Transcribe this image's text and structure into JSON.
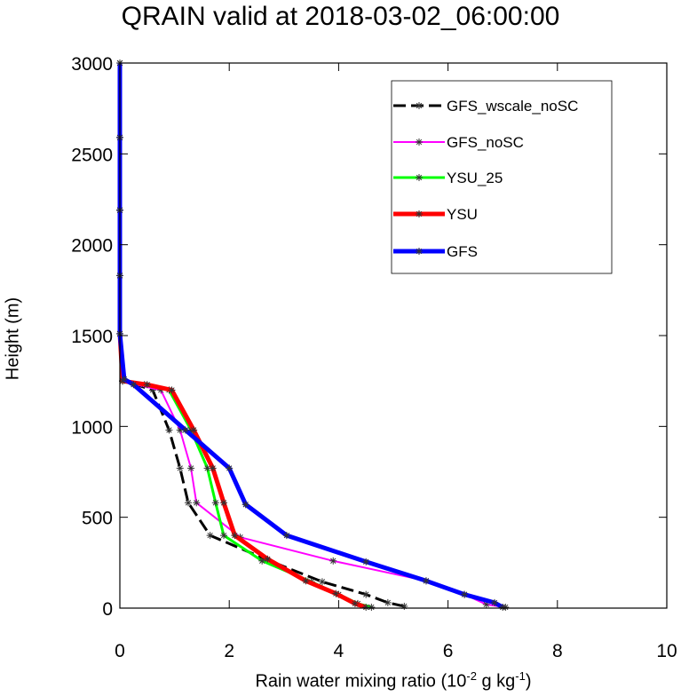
{
  "chart_data": {
    "type": "line",
    "title": "QRAIN valid at 2018-03-02_06:00:00",
    "xlabel_prefix": "Rain water mixing ratio (10",
    "xlabel_exp1": "-2",
    "xlabel_mid": " g kg",
    "xlabel_exp2": "-1",
    "xlabel_suffix": ")",
    "ylabel": "Height (m)",
    "xlim": [
      0,
      10
    ],
    "ylim": [
      0,
      3000
    ],
    "xticks": [
      0,
      2,
      4,
      6,
      8,
      10
    ],
    "yticks": [
      0,
      500,
      1000,
      1500,
      2000,
      2500,
      3000
    ],
    "grid": false,
    "legend_position": "top-right",
    "series": [
      {
        "name": "GFS_wscale_noSC",
        "color": "#000000",
        "dashed": true,
        "width": 3,
        "x": [
          5.2,
          4.9,
          4.5,
          3.7,
          2.7,
          1.65,
          1.25,
          1.1,
          0.9,
          0.6,
          0.3,
          0.05,
          0.0,
          0.0,
          0.0,
          0.0,
          0.0
        ],
        "y": [
          10,
          30,
          75,
          145,
          265,
          400,
          580,
          770,
          980,
          1200,
          1230,
          1250,
          1510,
          1830,
          2190,
          2590,
          3000
        ]
      },
      {
        "name": "GFS_noSC",
        "color": "#ff00ff",
        "dashed": false,
        "width": 2,
        "x": [
          7.05,
          6.7,
          6.3,
          5.6,
          3.9,
          2.2,
          1.4,
          1.3,
          1.1,
          0.75,
          0.3,
          0.05,
          0.0,
          0.0,
          0.0,
          0.0,
          0.0
        ],
        "y": [
          5,
          20,
          75,
          150,
          260,
          390,
          580,
          770,
          980,
          1200,
          1230,
          1250,
          1510,
          1830,
          2190,
          2590,
          3000
        ]
      },
      {
        "name": "YSU_25",
        "color": "#00ff00",
        "dashed": false,
        "width": 3,
        "x": [
          4.6,
          4.35,
          4.0,
          3.5,
          2.6,
          1.9,
          1.75,
          1.6,
          1.3,
          0.9,
          0.45,
          0.05,
          0.0,
          0.0,
          0.0,
          0.0,
          0.0
        ],
        "y": [
          5,
          25,
          75,
          145,
          260,
          400,
          580,
          770,
          980,
          1200,
          1230,
          1250,
          1510,
          1830,
          2190,
          2590,
          3000
        ]
      },
      {
        "name": "YSU",
        "color": "#ff0000",
        "dashed": false,
        "width": 5,
        "x": [
          4.5,
          4.3,
          3.95,
          3.4,
          2.7,
          2.1,
          1.9,
          1.7,
          1.35,
          0.95,
          0.5,
          0.05,
          0.0,
          0.0,
          0.0,
          0.0,
          0.0
        ],
        "y": [
          5,
          25,
          80,
          150,
          270,
          400,
          580,
          770,
          980,
          1200,
          1230,
          1250,
          1510,
          1830,
          2190,
          2590,
          3000
        ]
      },
      {
        "name": "GFS",
        "color": "#0000ff",
        "dashed": false,
        "width": 5,
        "x": [
          7.0,
          6.85,
          6.3,
          5.6,
          4.5,
          3.05,
          2.3,
          2.0,
          1.2,
          0.25,
          0.08,
          0.0,
          0.0,
          0.0,
          0.0,
          0.0
        ],
        "y": [
          5,
          30,
          75,
          150,
          255,
          400,
          570,
          770,
          980,
          1230,
          1260,
          1510,
          1830,
          2190,
          2590,
          3000
        ]
      }
    ]
  }
}
